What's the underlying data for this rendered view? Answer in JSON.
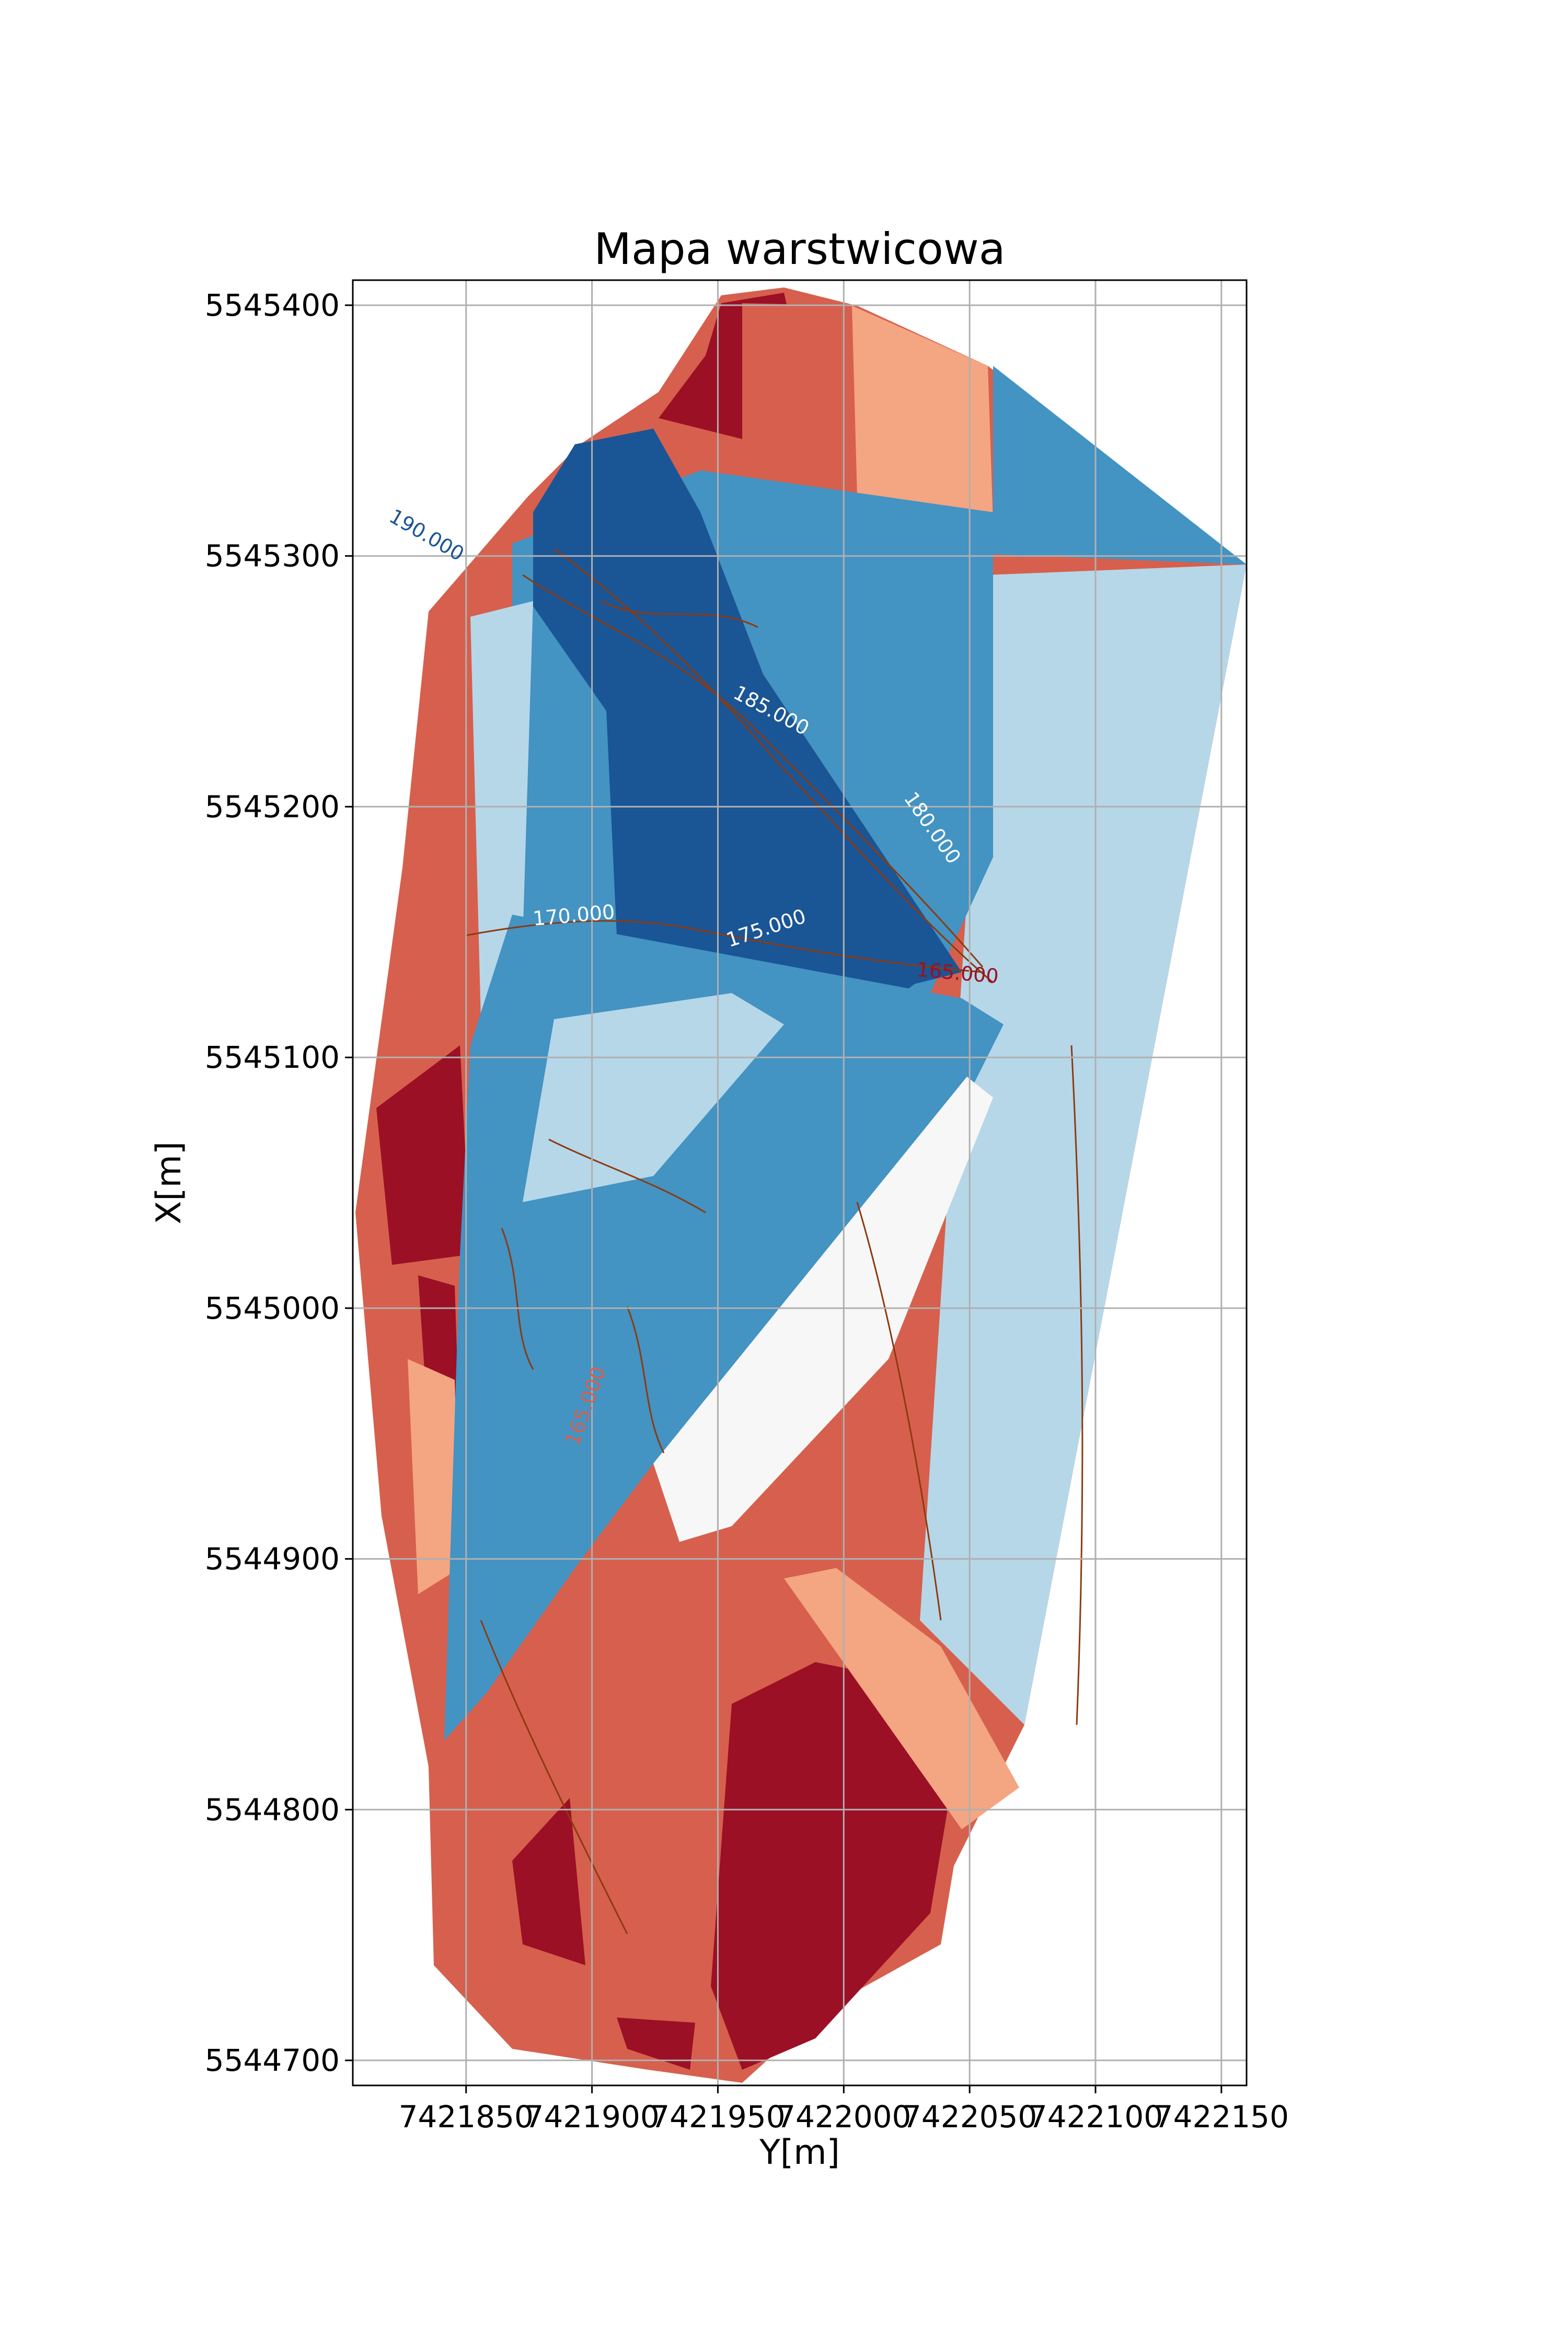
{
  "chart_data": {
    "type": "contour",
    "title": "Mapa warstwicowa",
    "xlabel": "Y[m]",
    "ylabel": "X[m]",
    "xlim": [
      7421805,
      7422160
    ],
    "ylim": [
      5544690,
      5545410
    ],
    "grid": true,
    "x_ticks": [
      7421850,
      7421900,
      7421950,
      7422000,
      7422050,
      7422100,
      7422150
    ],
    "x_tick_labels": [
      "7421850",
      "7421900",
      "7421950",
      "7422000",
      "7422050",
      "7422100",
      "7422150"
    ],
    "y_ticks": [
      5544700,
      5544800,
      5544900,
      5545000,
      5545100,
      5545200,
      5545300,
      5545400
    ],
    "y_tick_labels": [
      "5544700",
      "5544800",
      "5544900",
      "5545000",
      "5545100",
      "5545200",
      "5545300",
      "5545400"
    ],
    "colormap": "RdBu",
    "level_colors": [
      "#9b1025",
      "#d6604d",
      "#f4a582",
      "#f7f7f7",
      "#b6d7e8",
      "#4393c3",
      "#1a5596"
    ],
    "contour_line_color": "#8c3a10",
    "contour_labels": [
      {
        "text": "185.000",
        "y": 7421970,
        "x": 5545236,
        "rotation": 28,
        "color": "#ffffff"
      },
      {
        "text": "180.000",
        "y": 7422033,
        "x": 5545190,
        "rotation": 55,
        "color": "#ffffff"
      },
      {
        "text": "175.000",
        "y": 7421970,
        "x": 5545149,
        "rotation": -18,
        "color": "#ffffff"
      },
      {
        "text": "165.000",
        "y": 7422045,
        "x": 5545131,
        "rotation": 5,
        "color": "#9b1025"
      },
      {
        "text": "170.000",
        "y": 7421893,
        "x": 5545154,
        "rotation": -5,
        "color": "#ffffff"
      },
      {
        "text": "190.000",
        "y": 7421833,
        "x": 5545306,
        "rotation": 30,
        "color": "#1a5596"
      },
      {
        "text": "165.000",
        "y": 7421900,
        "x": 5544960,
        "rotation": -70,
        "color": "#d6604d"
      }
    ]
  }
}
